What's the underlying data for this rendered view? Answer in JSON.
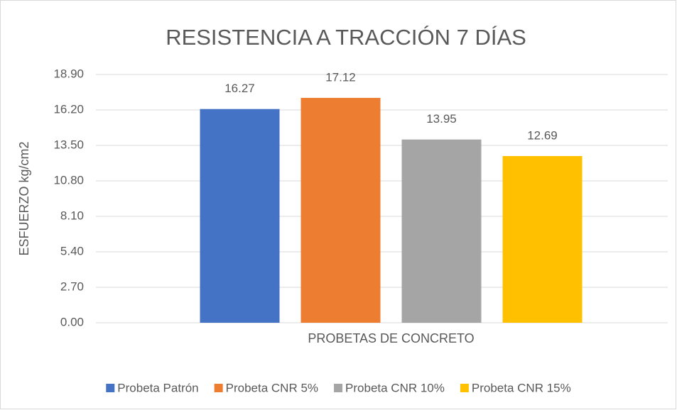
{
  "chart_data": {
    "type": "bar",
    "title": "RESISTENCIA A TRACCIÓN 7 DÍAS",
    "ylabel": "ESFUERZO kg/cm2",
    "categories": [
      "PROBETAS DE CONCRETO"
    ],
    "series": [
      {
        "name": "Probeta Patrón",
        "color": "#4472c4",
        "values": [
          16.27
        ]
      },
      {
        "name": "Probeta CNR 5%",
        "color": "#ed7d31",
        "values": [
          17.12
        ]
      },
      {
        "name": "Probeta CNR 10%",
        "color": "#a5a5a5",
        "values": [
          13.95
        ]
      },
      {
        "name": "Probeta CNR 15%",
        "color": "#ffc000",
        "values": [
          12.69
        ]
      }
    ],
    "ylim": [
      0,
      18.9
    ],
    "yticks": [
      {
        "value": 0,
        "label": "0.00"
      },
      {
        "value": 2.7,
        "label": "2.70"
      },
      {
        "value": 5.4,
        "label": "5.40"
      },
      {
        "value": 8.1,
        "label": "8.10"
      },
      {
        "value": 10.8,
        "label": "10.80"
      },
      {
        "value": 13.5,
        "label": "13.50"
      },
      {
        "value": 16.2,
        "label": "16.20"
      },
      {
        "value": 18.9,
        "label": "18.90"
      }
    ],
    "grid": true,
    "legend": "bottom"
  }
}
